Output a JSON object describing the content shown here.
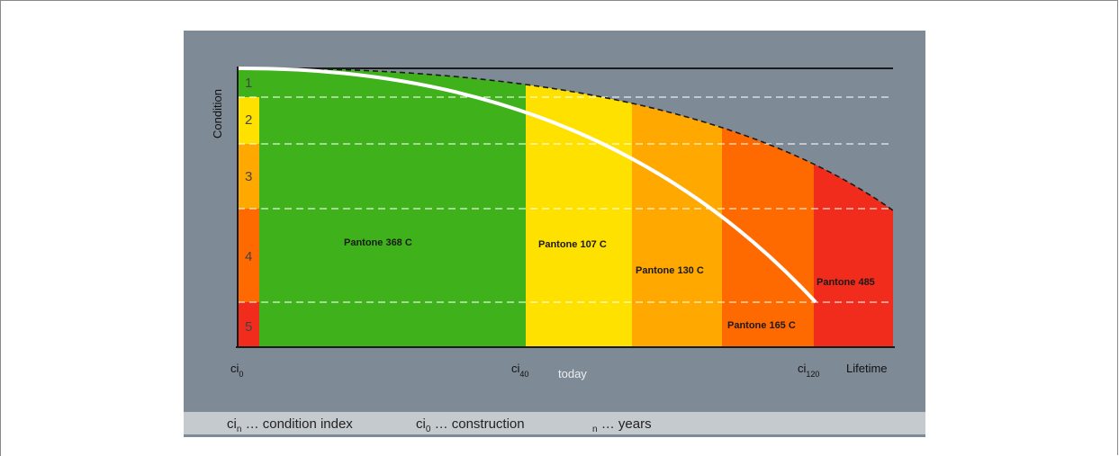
{
  "diagram": {
    "y_axis_label": "Condition",
    "condition_classes": [
      {
        "label": "1",
        "color": "#3fb21b"
      },
      {
        "label": "2",
        "color": "#ffe100"
      },
      {
        "label": "3",
        "color": "#ffa800"
      },
      {
        "label": "4",
        "color": "#ff6a00"
      },
      {
        "label": "5",
        "color": "#f22c1c"
      }
    ],
    "zones": [
      {
        "label": "Pantone 368 C",
        "color": "#3fb21b"
      },
      {
        "label": "Pantone 107 C",
        "color": "#ffe100"
      },
      {
        "label": "Pantone 130 C",
        "color": "#ffa800"
      },
      {
        "label": "Pantone 165 C",
        "color": "#ff6a00"
      },
      {
        "label": "Pantone 485",
        "color": "#f22c1c"
      }
    ],
    "x_ticks": [
      {
        "base": "ci",
        "sub": "0"
      },
      {
        "base": "ci",
        "sub": "40"
      },
      {
        "base": "ci",
        "sub": "120"
      }
    ],
    "today_label": "today",
    "x_axis_label": "Lifetime",
    "background_color": "#7f8a97"
  },
  "legend": {
    "item1": {
      "base": "ci",
      "sub": "n",
      "text": " … condition index"
    },
    "item2": {
      "base": "ci",
      "sub": "0",
      "text": " … construction"
    },
    "item3": {
      "sub": "n",
      "text": " … years"
    }
  }
}
